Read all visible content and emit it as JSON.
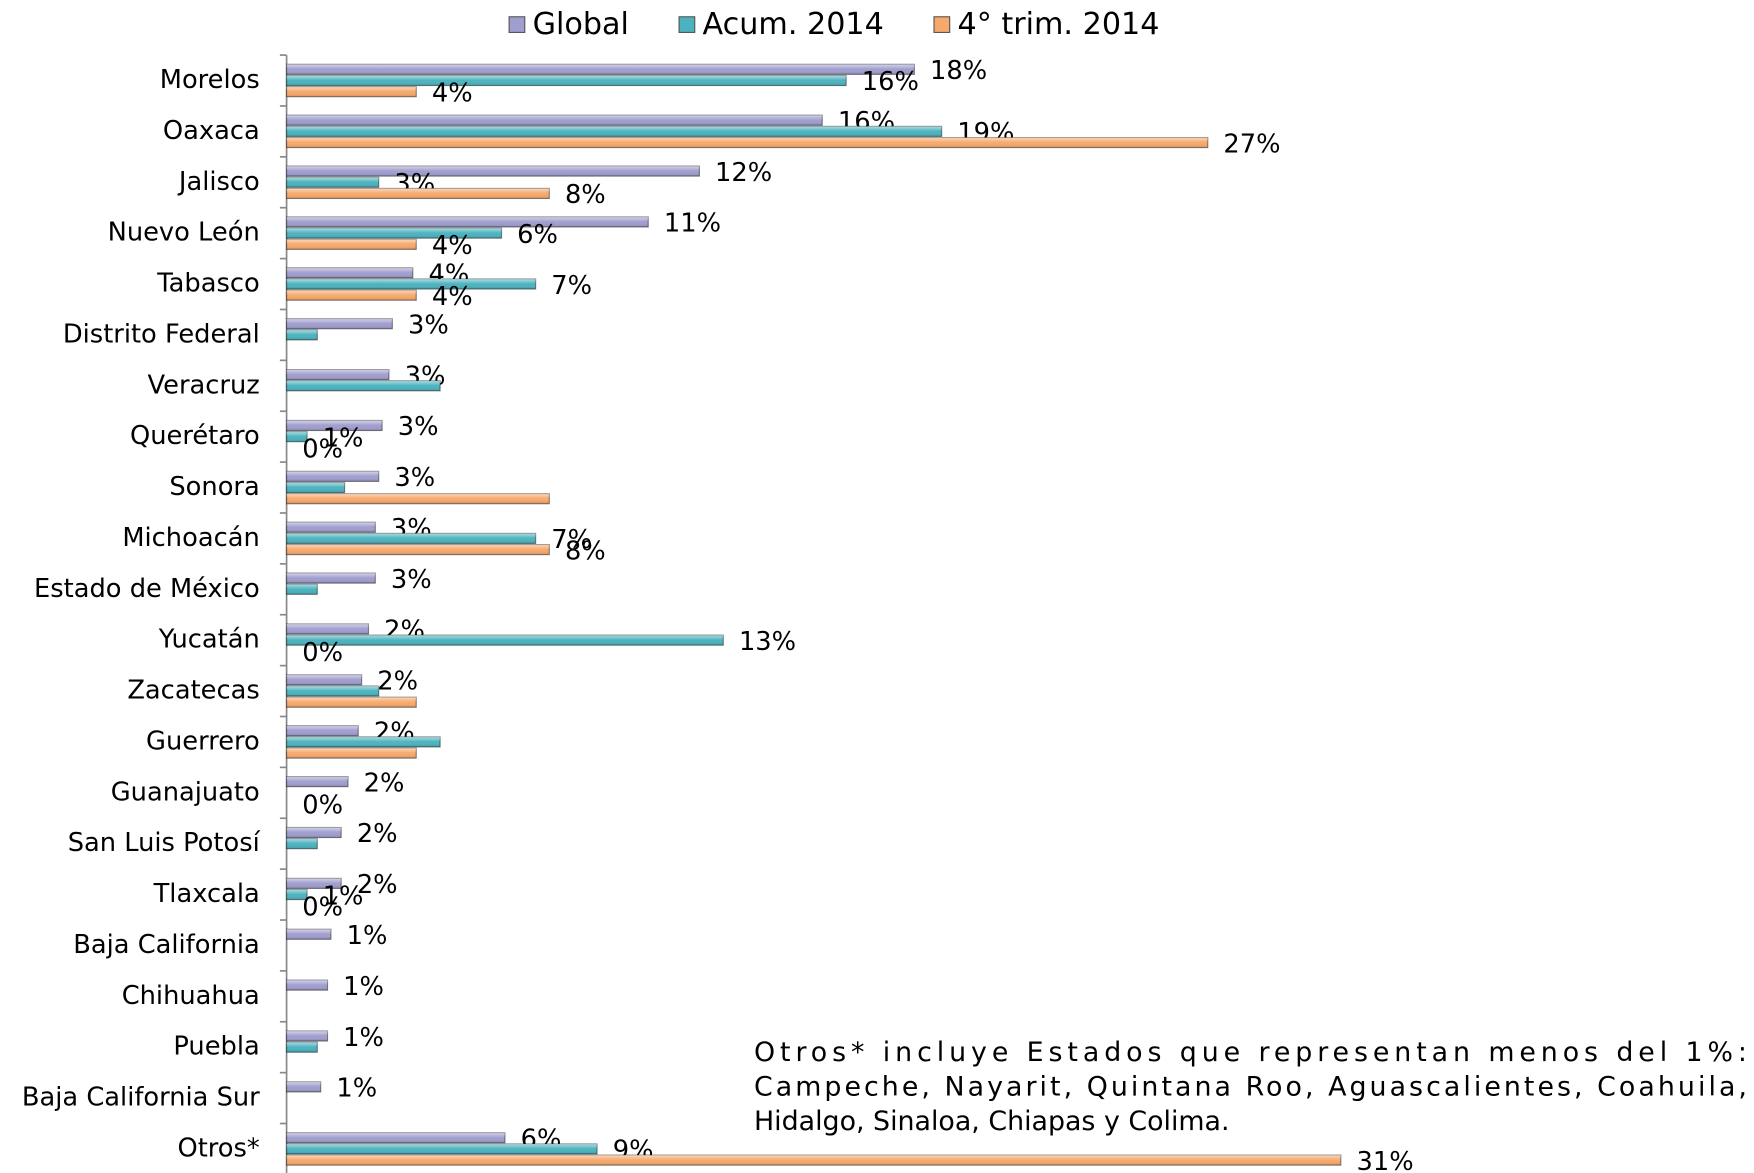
{
  "chart_data": {
    "type": "bar",
    "orientation": "horizontal",
    "categories": [
      "Morelos",
      "Oaxaca",
      "Jalisco",
      "Nuevo León",
      "Tabasco",
      "Distrito Federal",
      "Veracruz",
      "Querétaro",
      "Sonora",
      "Michoacán",
      "Estado de México",
      "Yucatán",
      "Zacatecas",
      "Guerrero",
      "Guanajuato",
      "San Luis Potosí",
      "Tlaxcala",
      "Baja California",
      "Chihuahua",
      "Puebla",
      "Baja California Sur",
      "Otros*"
    ],
    "xlim": [
      0,
      43
    ],
    "legend": "top",
    "series": [
      {
        "name": "Global",
        "color": "#a09ece",
        "values": [
          18.4,
          15.7,
          12.1,
          10.6,
          3.7,
          3.1,
          3.0,
          2.8,
          2.7,
          2.6,
          2.6,
          2.4,
          2.2,
          2.1,
          1.8,
          1.6,
          1.6,
          1.3,
          1.2,
          1.2,
          1.0,
          6.4
        ],
        "value_labels": [
          "18%",
          "16%",
          "12%",
          "11%",
          "4%",
          "3%",
          "3%",
          "3%",
          "3%",
          "3%",
          "3%",
          "2%",
          "2%",
          "2%",
          "2%",
          "2%",
          "2%",
          "1%",
          "1%",
          "1%",
          "1%",
          "6%"
        ]
      },
      {
        "name": "Acum. 2014",
        "color": "#4bb3bf",
        "values": [
          16.4,
          19.2,
          2.7,
          6.3,
          7.3,
          0.9,
          4.5,
          0.6,
          1.7,
          7.3,
          0.9,
          12.8,
          2.7,
          4.5,
          null,
          0.9,
          0.6,
          null,
          null,
          0.9,
          null,
          9.1
        ],
        "value_labels": [
          "16%",
          "19%",
          "3%",
          "6%",
          "7%",
          null,
          null,
          "1%",
          null,
          "7%",
          null,
          "13%",
          null,
          null,
          null,
          null,
          "1%",
          null,
          null,
          null,
          null,
          "9%"
        ]
      },
      {
        "name": "4° trim. 2014",
        "color": "#f7a96c",
        "values": [
          3.8,
          27,
          7.7,
          3.8,
          3.8,
          null,
          null,
          0,
          7.7,
          7.7,
          null,
          0,
          3.8,
          3.8,
          0,
          null,
          0,
          null,
          null,
          null,
          null,
          30.9
        ],
        "value_labels": [
          "4%",
          "27%",
          "8%",
          "4%",
          "4%",
          null,
          null,
          "0%",
          null,
          "8%",
          null,
          "0%",
          null,
          null,
          "0%",
          null,
          "0%",
          null,
          null,
          null,
          null,
          "31%"
        ]
      }
    ],
    "note": [
      "Otros* incluye Estados que representan menos del 1%:",
      "Campeche, Nayarit, Quintana Roo, Aguascalientes, Coahuila,",
      "Hidalgo, Sinaloa, Chiapas y Colima."
    ]
  }
}
